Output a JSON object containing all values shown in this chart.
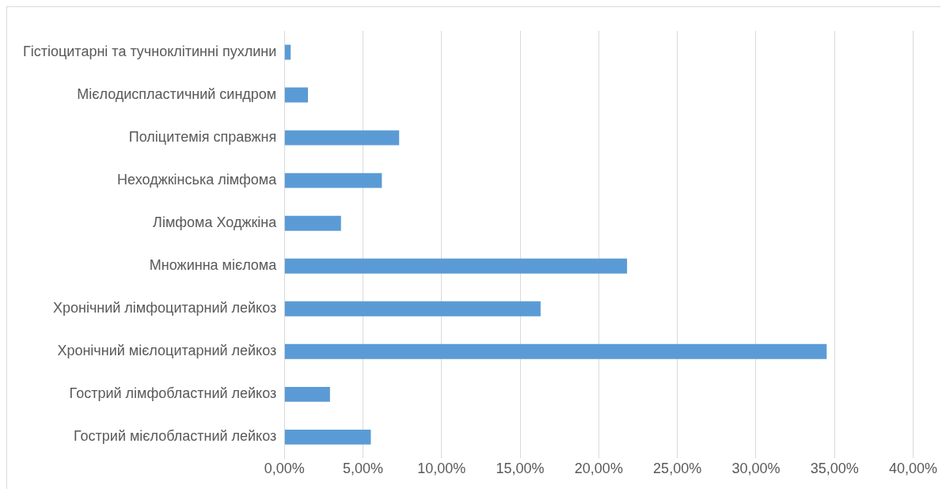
{
  "chart_data": {
    "type": "bar",
    "orientation": "horizontal",
    "categories": [
      "Гістіоцитарні та тучноклітинні пухлини",
      "Мієлодиспластичний синдром",
      "Поліцитемія справжня",
      "Неходжкінська лімфома",
      "Лімфома Ходжкіна",
      "Множинна мієлома",
      "Хронічний лімфоцитарний лейкоз",
      "Хронічний мієлоцитарний лейкоз",
      "Гострий лімфобластний лейкоз",
      "Гострий мієлобластний лейкоз"
    ],
    "values": [
      0.4,
      1.5,
      7.3,
      6.2,
      3.6,
      21.8,
      16.3,
      34.5,
      2.9,
      5.5
    ],
    "color": "#5b9bd5",
    "xlim": [
      0,
      40
    ],
    "xticks": [
      {
        "value": 0,
        "label": "0,00%"
      },
      {
        "value": 5,
        "label": "5,00%"
      },
      {
        "value": 10,
        "label": "10,00%"
      },
      {
        "value": 15,
        "label": "15,00%"
      },
      {
        "value": 20,
        "label": "20,00%"
      },
      {
        "value": 25,
        "label": "25,00%"
      },
      {
        "value": 30,
        "label": "30,00%"
      },
      {
        "value": 35,
        "label": "35,00%"
      },
      {
        "value": 40,
        "label": "40,00%"
      }
    ],
    "grid": "x",
    "legend": false
  }
}
